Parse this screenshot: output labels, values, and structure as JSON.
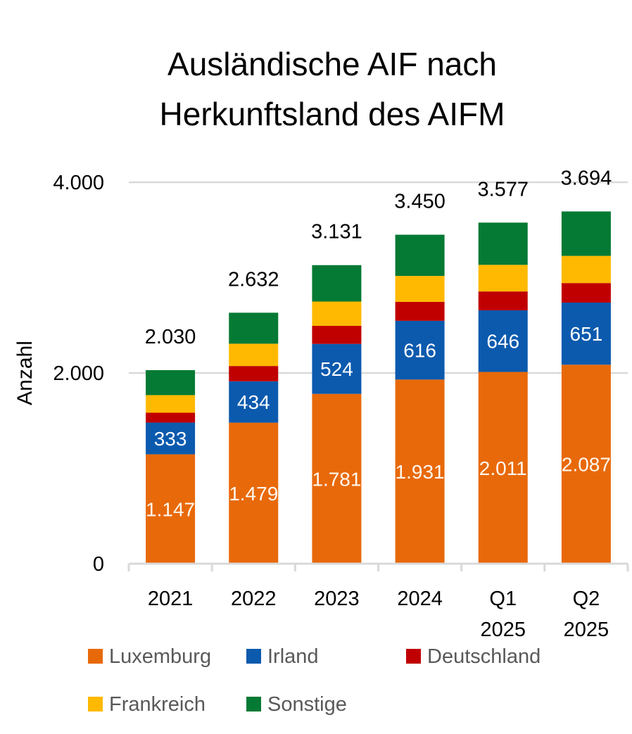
{
  "chart_data": {
    "type": "bar",
    "stacked": true,
    "title": [
      "Ausländische AIF nach",
      "Herkunftsland des AIFM"
    ],
    "xlabel": "",
    "ylabel": "Anzahl",
    "ylim": [
      0,
      4000
    ],
    "yticks": [
      0,
      2000,
      4000
    ],
    "ytick_labels": [
      "0",
      "2.000",
      "4.000"
    ],
    "grid": true,
    "categories": [
      [
        "2021"
      ],
      [
        "2022"
      ],
      [
        "2023"
      ],
      [
        "2024"
      ],
      [
        "Q1",
        "2025"
      ],
      [
        "Q2",
        "2025"
      ]
    ],
    "series": [
      {
        "name": "Luxemburg",
        "color": "#E8690A",
        "label_color": "#FFF8EE",
        "values": [
          1147,
          1479,
          1781,
          1931,
          2011,
          2087
        ],
        "labels": [
          "1.147",
          "1.479",
          "1.781",
          "1.931",
          "2.011",
          "2.087"
        ],
        "show_labels": true
      },
      {
        "name": "Irland",
        "color": "#0B5AAE",
        "label_color": "#FFFFFF",
        "values": [
          333,
          434,
          524,
          616,
          646,
          651
        ],
        "labels": [
          "333",
          "434",
          "524",
          "616",
          "646",
          "651"
        ],
        "show_labels": true
      },
      {
        "name": "Deutschland",
        "color": "#C00000",
        "values": [
          103,
          160,
          190,
          199,
          198,
          205
        ],
        "show_labels": false
      },
      {
        "name": "Frankreich",
        "color": "#FFB900",
        "values": [
          185,
          234,
          254,
          272,
          279,
          285
        ],
        "show_labels": false
      },
      {
        "name": "Sonstige",
        "color": "#057A34",
        "values": [
          262,
          325,
          382,
          432,
          443,
          466
        ],
        "show_labels": false
      }
    ],
    "totals": [
      2030,
      2632,
      3131,
      3450,
      3577,
      3694
    ],
    "total_labels": [
      "2.030",
      "2.632",
      "3.131",
      "3.450",
      "3.577",
      "3.694"
    ],
    "legend": {
      "placement": "bottom",
      "rows": [
        [
          "Luxemburg",
          "Irland",
          "Deutschland"
        ],
        [
          "Frankreich",
          "Sonstige"
        ]
      ]
    }
  }
}
